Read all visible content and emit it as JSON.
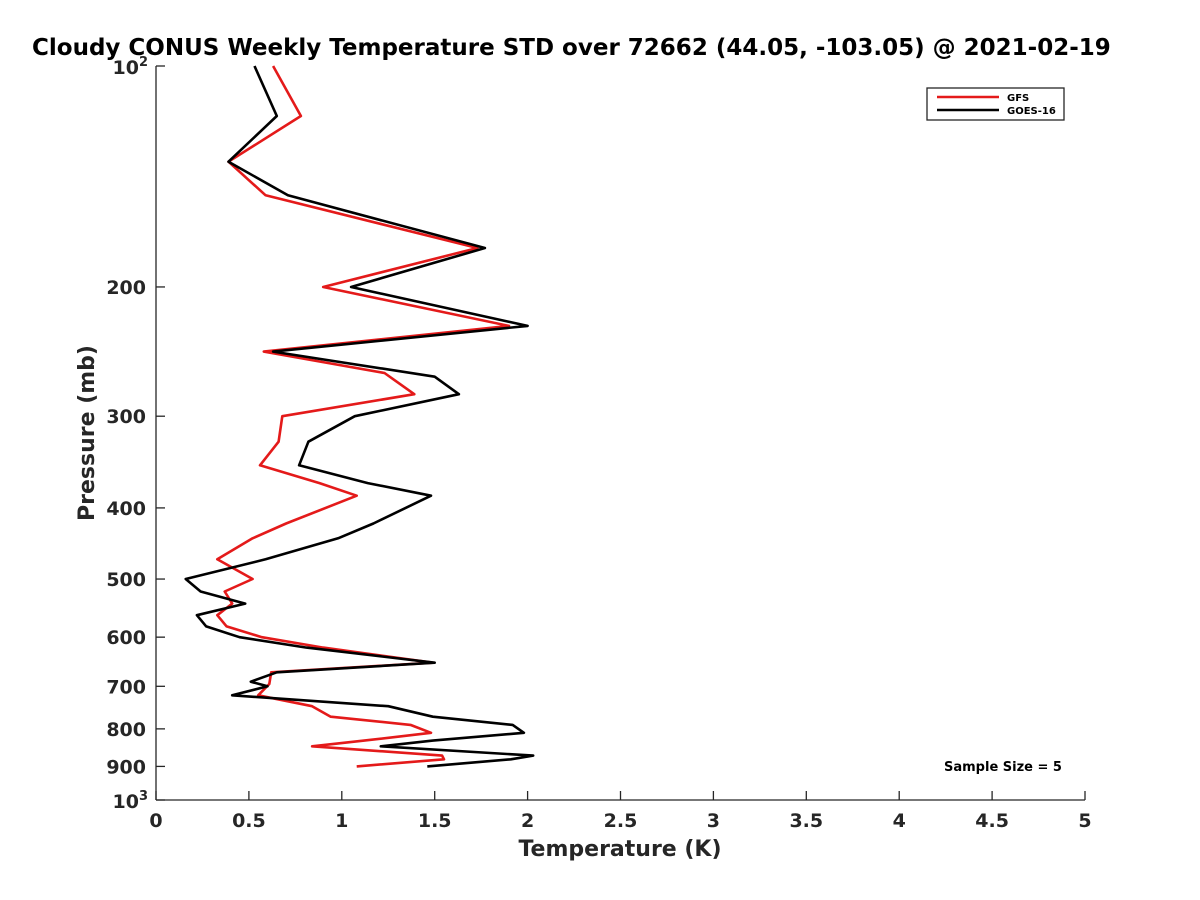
{
  "chart_data": {
    "type": "line",
    "title": "Cloudy CONUS Weekly Temperature STD over 72662 (44.05, -103.05) @ 2021-02-19",
    "xlabel": "Temperature (K)",
    "ylabel": "Pressure (mb)",
    "xlim": [
      0,
      5
    ],
    "ylim": [
      100,
      1000
    ],
    "y_scale": "log",
    "y_reversed": true,
    "x_ticks": [
      0,
      0.5,
      1,
      1.5,
      2,
      2.5,
      3,
      3.5,
      4,
      4.5,
      5
    ],
    "x_tick_labels": [
      "0",
      "0.5",
      "1",
      "1.5",
      "2",
      "2.5",
      "3",
      "3.5",
      "4",
      "4.5",
      "5"
    ],
    "y_ticks": [
      200,
      300,
      400,
      500,
      600,
      700,
      800,
      900
    ],
    "y_tick_labels": [
      "200",
      "300",
      "400",
      "500",
      "600",
      "700",
      "800",
      "900"
    ],
    "y_edge_labels": [
      {
        "value": 100,
        "base": "10",
        "exp": "2"
      },
      {
        "value": 1000,
        "base": "10",
        "exp": "3"
      }
    ],
    "legend": {
      "position": "top-right"
    },
    "annotation": "Sample Size = 5",
    "series": [
      {
        "name": "GFS",
        "color": "#e41a1a",
        "points": [
          [
            0.63,
            100
          ],
          [
            0.78,
            117
          ],
          [
            0.39,
            135
          ],
          [
            0.59,
            150
          ],
          [
            1.73,
            177
          ],
          [
            0.9,
            200
          ],
          [
            1.9,
            226
          ],
          [
            0.58,
            245
          ],
          [
            1.23,
            262
          ],
          [
            1.39,
            280
          ],
          [
            0.68,
            300
          ],
          [
            0.66,
            325
          ],
          [
            0.56,
            350
          ],
          [
            0.88,
            370
          ],
          [
            1.08,
            385
          ],
          [
            0.7,
            420
          ],
          [
            0.52,
            440
          ],
          [
            0.33,
            470
          ],
          [
            0.52,
            500
          ],
          [
            0.37,
            520
          ],
          [
            0.41,
            540
          ],
          [
            0.33,
            560
          ],
          [
            0.38,
            580
          ],
          [
            0.57,
            600
          ],
          [
            0.9,
            620
          ],
          [
            1.49,
            650
          ],
          [
            0.62,
            670
          ],
          [
            0.61,
            695
          ],
          [
            0.55,
            720
          ],
          [
            0.84,
            745
          ],
          [
            0.94,
            770
          ],
          [
            1.37,
            790
          ],
          [
            1.48,
            810
          ],
          [
            1.12,
            830
          ],
          [
            0.84,
            845
          ],
          [
            1.54,
            870
          ],
          [
            1.55,
            880
          ],
          [
            1.08,
            900
          ]
        ]
      },
      {
        "name": "GOES-16",
        "color": "#000000",
        "points": [
          [
            0.53,
            100
          ],
          [
            0.65,
            117
          ],
          [
            0.39,
            135
          ],
          [
            0.71,
            150
          ],
          [
            1.77,
            177
          ],
          [
            1.05,
            200
          ],
          [
            2.0,
            226
          ],
          [
            0.63,
            245
          ],
          [
            1.5,
            265
          ],
          [
            1.63,
            280
          ],
          [
            1.07,
            300
          ],
          [
            0.82,
            325
          ],
          [
            0.77,
            350
          ],
          [
            1.14,
            370
          ],
          [
            1.48,
            385
          ],
          [
            1.17,
            420
          ],
          [
            0.98,
            440
          ],
          [
            0.59,
            470
          ],
          [
            0.16,
            500
          ],
          [
            0.24,
            520
          ],
          [
            0.48,
            540
          ],
          [
            0.22,
            560
          ],
          [
            0.27,
            580
          ],
          [
            0.45,
            600
          ],
          [
            0.81,
            620
          ],
          [
            1.5,
            650
          ],
          [
            0.65,
            670
          ],
          [
            0.51,
            690
          ],
          [
            0.6,
            700
          ],
          [
            0.41,
            720
          ],
          [
            1.25,
            745
          ],
          [
            1.49,
            770
          ],
          [
            1.92,
            790
          ],
          [
            1.98,
            810
          ],
          [
            1.49,
            830
          ],
          [
            1.21,
            845
          ],
          [
            2.03,
            870
          ],
          [
            1.91,
            880
          ],
          [
            1.46,
            900
          ]
        ]
      }
    ]
  }
}
